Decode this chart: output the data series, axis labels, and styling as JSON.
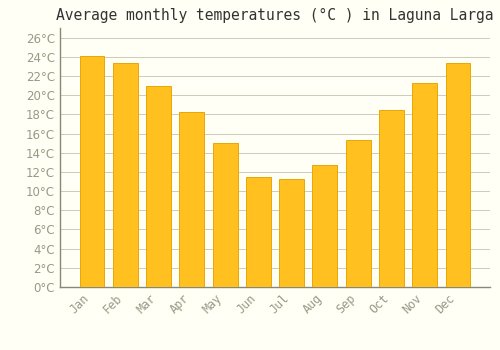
{
  "title": "Average monthly temperatures (°C ) in Laguna Larga",
  "months": [
    "Jan",
    "Feb",
    "Mar",
    "Apr",
    "May",
    "Jun",
    "Jul",
    "Aug",
    "Sep",
    "Oct",
    "Nov",
    "Dec"
  ],
  "temperatures": [
    24.1,
    23.3,
    21.0,
    18.2,
    15.0,
    11.5,
    11.3,
    12.7,
    15.3,
    18.5,
    21.3,
    23.3
  ],
  "bar_color": "#FFC020",
  "bar_edge_color": "#E8A800",
  "background_color": "#FFFFF5",
  "grid_color": "#CCCCBB",
  "text_color": "#999988",
  "ylim": [
    0,
    27
  ],
  "yticks": [
    0,
    2,
    4,
    6,
    8,
    10,
    12,
    14,
    16,
    18,
    20,
    22,
    24,
    26
  ],
  "title_fontsize": 10.5,
  "tick_fontsize": 8.5
}
